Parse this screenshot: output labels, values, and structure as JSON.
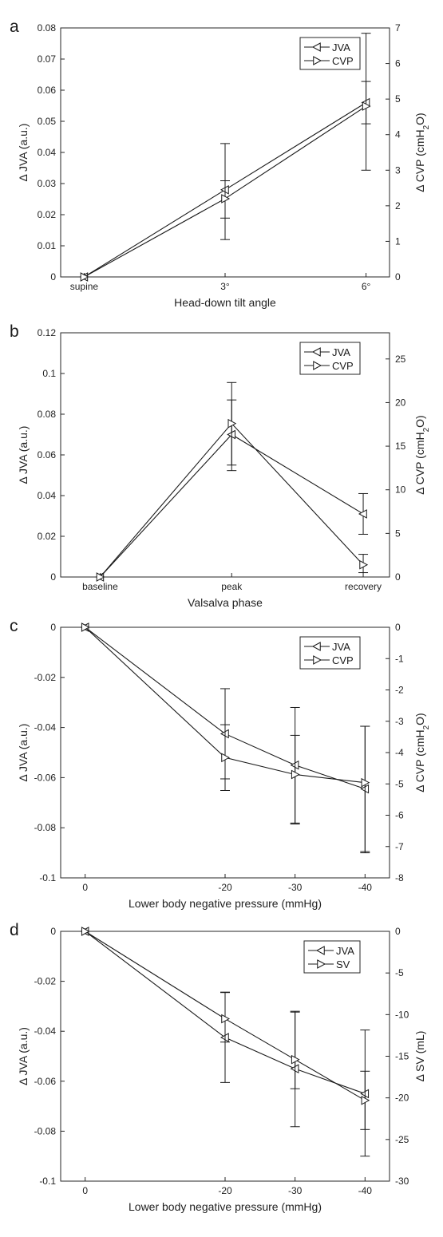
{
  "chart_data": [
    {
      "type": "line",
      "panel": "a",
      "xlabel": "Head-down tilt angle",
      "ylabel": "Δ JVA (a.u.)",
      "ylabel_right": "Δ CVP (cmH2O)",
      "categories": [
        "supine",
        "3°",
        "6°"
      ],
      "x": [
        0,
        3,
        6
      ],
      "xlim": [
        -0.5,
        6.5
      ],
      "ylim": [
        0,
        0.08
      ],
      "ylim_right": [
        0,
        7
      ],
      "yticks": [
        "0",
        "0.01",
        "0.02",
        "0.03",
        "0.04",
        "0.05",
        "0.06",
        "0.07",
        "0.08"
      ],
      "yticks_right": [
        "0",
        "1",
        "2",
        "3",
        "4",
        "5",
        "6",
        "7"
      ],
      "legend_position": "top-right",
      "series": [
        {
          "name": "JVA",
          "axis": "left",
          "marker": "left-triangle",
          "values": [
            0,
            0.028,
            0.056
          ],
          "err_low": [
            0,
            0.0091,
            0.0068
          ],
          "err_high": [
            0,
            0.0029,
            0.0068
          ]
        },
        {
          "name": "CVP",
          "axis": "right",
          "marker": "right-triangle",
          "values": [
            0,
            2.2,
            4.8
          ],
          "err_low": [
            0,
            1.15,
            1.8
          ],
          "err_high": [
            0,
            1.55,
            2.05
          ]
        }
      ]
    },
    {
      "type": "line",
      "panel": "b",
      "xlabel": "Valsalva phase",
      "ylabel": "Δ JVA (a.u.)",
      "ylabel_right": "Δ CVP (cmH2O)",
      "categories": [
        "baseline",
        "peak",
        "recovery"
      ],
      "x": [
        0,
        1,
        2
      ],
      "xlim": [
        -0.3,
        2.2
      ],
      "ylim": [
        0,
        0.12
      ],
      "ylim_right": [
        0,
        28
      ],
      "yticks": [
        "0",
        "0.02",
        "0.04",
        "0.06",
        "0.08",
        "0.1",
        "0.12"
      ],
      "yticks_right": [
        "0",
        "5",
        "10",
        "15",
        "20",
        "25"
      ],
      "legend_position": "top-right",
      "series": [
        {
          "name": "JVA",
          "axis": "left",
          "marker": "left-triangle",
          "values": [
            0,
            0.07,
            0.031
          ],
          "err_low": [
            0,
            0.015,
            0.01
          ],
          "err_high": [
            0,
            0.017,
            0.01
          ]
        },
        {
          "name": "CVP",
          "axis": "right",
          "marker": "right-triangle",
          "values": [
            0,
            17.6,
            1.4
          ],
          "err_low": [
            0,
            5.4,
            0.9
          ],
          "err_high": [
            0,
            4.7,
            1.2
          ]
        }
      ]
    },
    {
      "type": "line",
      "panel": "c",
      "xlabel": "Lower body negative pressure (mmHg)",
      "ylabel": "Δ JVA (a.u.)",
      "ylabel_right": "Δ CVP (cmH2O)",
      "categories": [
        "0",
        "-20",
        "-30",
        "-40"
      ],
      "x": [
        0,
        -20,
        -30,
        -40
      ],
      "xlim": [
        3.5,
        -43.5
      ],
      "ylim": [
        -0.1,
        0
      ],
      "ylim_right": [
        -8,
        0
      ],
      "yticks": [
        "-0.1",
        "-0.08",
        "-0.06",
        "-0.04",
        "-0.02",
        "0"
      ],
      "yticks_right": [
        "-8",
        "-7",
        "-6",
        "-5",
        "-4",
        "-3",
        "-2",
        "-1",
        "0"
      ],
      "legend_position": "top-right",
      "series": [
        {
          "name": "JVA",
          "axis": "left",
          "marker": "left-triangle",
          "values": [
            0,
            -0.0425,
            -0.055,
            -0.0645
          ],
          "err_low": [
            0,
            0.018,
            0.0235,
            0.0255
          ],
          "err_high": [
            0,
            0.018,
            0.023,
            0.025
          ]
        },
        {
          "name": "CVP",
          "axis": "right",
          "marker": "right-triangle",
          "values": [
            0,
            -4.16,
            -4.7,
            -4.96
          ],
          "err_low": [
            0,
            1.05,
            1.55,
            2.2
          ],
          "err_high": [
            0,
            1.05,
            1.25,
            1.8
          ]
        }
      ]
    },
    {
      "type": "line",
      "panel": "d",
      "xlabel": "Lower body negative pressure (mmHg)",
      "ylabel": "Δ JVA (a.u.)",
      "ylabel_right": "Δ SV (mL)",
      "categories": [
        "0",
        "-20",
        "-30",
        "-40"
      ],
      "x": [
        0,
        -20,
        -30,
        -40
      ],
      "xlim": [
        3.5,
        -43.5
      ],
      "ylim": [
        -0.1,
        0
      ],
      "ylim_right": [
        -30,
        0
      ],
      "yticks": [
        "-0.1",
        "-0.08",
        "-0.06",
        "-0.04",
        "-0.02",
        "0"
      ],
      "yticks_right": [
        "-30",
        "-25",
        "-20",
        "-15",
        "-10",
        "-5",
        "0"
      ],
      "legend_position": "top-right",
      "series": [
        {
          "name": "JVA",
          "axis": "left",
          "marker": "left-triangle",
          "values": [
            0,
            -0.0425,
            -0.055,
            -0.065
          ],
          "err_low": [
            0,
            0.018,
            0.0232,
            0.025
          ],
          "err_high": [
            0,
            0.018,
            0.023,
            0.0255
          ]
        },
        {
          "name": "SV",
          "axis": "right",
          "marker": "right-triangle",
          "values": [
            0,
            -10.5,
            -15.4,
            -20.3
          ],
          "err_low": [
            0,
            2.8,
            3.5,
            3.5
          ],
          "err_high": [
            0,
            3.2,
            5.7,
            3.5
          ]
        }
      ]
    }
  ]
}
